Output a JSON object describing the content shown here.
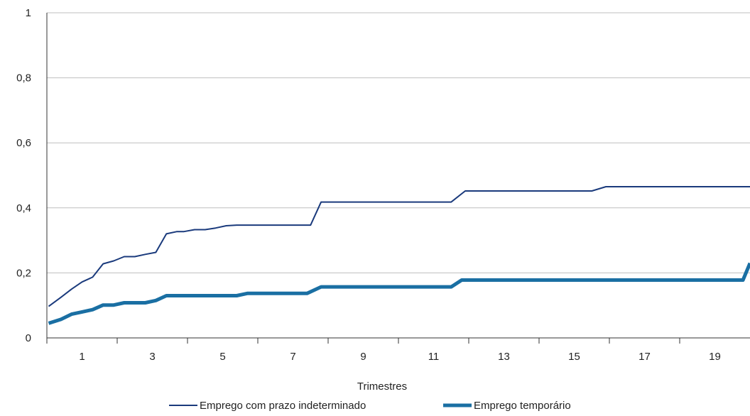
{
  "chart_data": {
    "type": "line",
    "title": "",
    "xlabel": "Trimestres",
    "ylabel": "",
    "xlim": [
      0,
      20
    ],
    "ylim": [
      0,
      1
    ],
    "y_ticks": [
      {
        "value": 0,
        "label": "0"
      },
      {
        "value": 0.2,
        "label": "0,2"
      },
      {
        "value": 0.4,
        "label": "0,4"
      },
      {
        "value": 0.6,
        "label": "0,6"
      },
      {
        "value": 0.8,
        "label": "0,8"
      },
      {
        "value": 1,
        "label": "1"
      }
    ],
    "x_ticks": [
      {
        "value": 1,
        "label": "1"
      },
      {
        "value": 3,
        "label": "3"
      },
      {
        "value": 5,
        "label": "5"
      },
      {
        "value": 7,
        "label": "7"
      },
      {
        "value": 9,
        "label": "9"
      },
      {
        "value": 11,
        "label": "11"
      },
      {
        "value": 13,
        "label": "13"
      },
      {
        "value": 15,
        "label": "15"
      },
      {
        "value": 17,
        "label": "17"
      },
      {
        "value": 19,
        "label": "19"
      }
    ],
    "grid": "horizontal",
    "legend_position": "bottom",
    "series": [
      {
        "name": "Emprego com prazo indeterminado",
        "color": "#1a3a7c",
        "x": [
          0.05,
          0.4,
          0.7,
          1.0,
          1.3,
          1.6,
          1.9,
          2.2,
          2.5,
          2.8,
          3.1,
          3.4,
          3.7,
          3.9,
          4.2,
          4.5,
          4.8,
          5.1,
          5.4,
          5.7,
          6.0,
          6.3,
          7.5,
          7.8,
          8.1,
          11.5,
          11.9,
          12.3,
          15.5,
          15.9,
          16.3,
          20.0
        ],
        "y": [
          0.097,
          0.125,
          0.15,
          0.172,
          0.187,
          0.228,
          0.237,
          0.25,
          0.25,
          0.257,
          0.263,
          0.32,
          0.327,
          0.327,
          0.333,
          0.333,
          0.338,
          0.345,
          0.347,
          0.347,
          0.347,
          0.347,
          0.347,
          0.418,
          0.418,
          0.418,
          0.452,
          0.452,
          0.452,
          0.465,
          0.465,
          0.465
        ]
      },
      {
        "name": "Emprego temporário",
        "color": "#1a6fa3",
        "x": [
          0.05,
          0.4,
          0.7,
          1.0,
          1.3,
          1.6,
          1.9,
          2.2,
          2.5,
          2.8,
          3.1,
          3.4,
          3.7,
          3.9,
          4.2,
          5.4,
          5.7,
          6.0,
          6.3,
          7.4,
          7.8,
          8.1,
          11.5,
          11.8,
          12.1,
          19.5,
          19.8,
          20.0
        ],
        "y": [
          0.045,
          0.057,
          0.073,
          0.08,
          0.087,
          0.101,
          0.101,
          0.108,
          0.108,
          0.108,
          0.115,
          0.13,
          0.13,
          0.13,
          0.13,
          0.13,
          0.137,
          0.137,
          0.137,
          0.137,
          0.157,
          0.157,
          0.157,
          0.178,
          0.178,
          0.178,
          0.178,
          0.23
        ]
      }
    ]
  }
}
